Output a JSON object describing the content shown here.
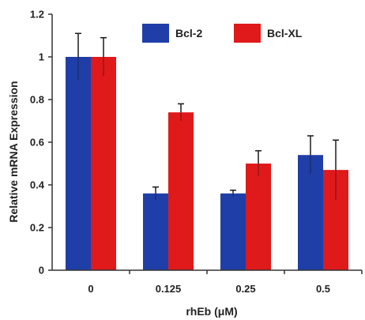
{
  "chart_data": {
    "type": "bar",
    "categories": [
      "0",
      "0.125",
      "0.25",
      "0.5"
    ],
    "series": [
      {
        "name": "Bcl-2",
        "color": "#1f3ea8",
        "values": [
          1.0,
          0.36,
          0.36,
          0.54
        ],
        "errors": [
          0.11,
          0.03,
          0.015,
          0.09
        ]
      },
      {
        "name": "Bcl-XL",
        "color": "#e0191b",
        "values": [
          1.0,
          0.74,
          0.5,
          0.47
        ],
        "errors": [
          0.09,
          0.04,
          0.06,
          0.14
        ]
      }
    ],
    "xlabel": "rhEb (μM)",
    "ylabel": "Relative mRNA Expression",
    "ylim": [
      0,
      1.2
    ],
    "yticks": [
      "0",
      "0.2",
      "0.4",
      "0.6",
      "0.8",
      "1",
      "1.2"
    ],
    "grid": false,
    "legend_position": "top"
  }
}
